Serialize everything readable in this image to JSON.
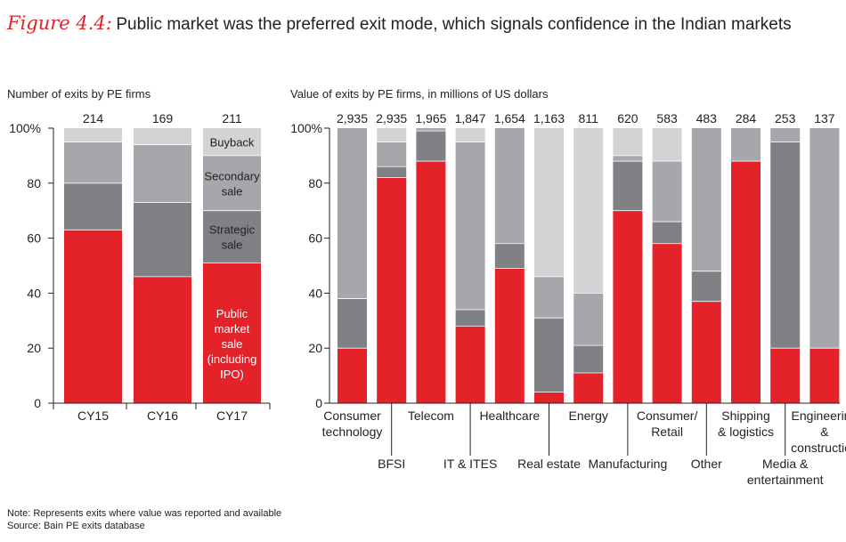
{
  "figure": {
    "label": "Figure 4.4:",
    "title": "Public market was the preferred exit mode, which signals confidence in the Indian markets"
  },
  "notes": {
    "note": "Note: Represents exits where value was reported and available",
    "source": "Source: Bain PE exits database"
  },
  "colors": {
    "public_market": "#e3222a",
    "strategic": "#808185",
    "secondary": "#a6a7aa",
    "buyback": "#d2d3d5",
    "other": "#a6a7aa",
    "axis": "#222222"
  },
  "chart_data": [
    {
      "type": "bar",
      "stacked": true,
      "normalized": true,
      "title": "Number of exits by PE firms",
      "categories": [
        "CY15",
        "CY16",
        "CY17"
      ],
      "totals": [
        "214",
        "169",
        "211"
      ],
      "y_ticks": [
        "0",
        "20",
        "40",
        "60",
        "80",
        "100%"
      ],
      "ylim": [
        0,
        100
      ],
      "series": [
        {
          "name": "Public market sale (including IPO)",
          "values": [
            63,
            46,
            51
          ]
        },
        {
          "name": "Strategic sale",
          "values": [
            17,
            27,
            19
          ]
        },
        {
          "name": "Secondary sale",
          "values": [
            15,
            21,
            20
          ]
        },
        {
          "name": "Buyback",
          "values": [
            5,
            6,
            10
          ]
        }
      ],
      "legend_labels": [
        [
          "Buyback"
        ],
        [
          "Secondary",
          "sale"
        ],
        [
          "Strategic",
          "sale"
        ],
        [
          "Public",
          "market",
          "sale",
          "(including",
          "IPO)"
        ]
      ]
    },
    {
      "type": "bar",
      "stacked": true,
      "normalized": true,
      "title": "Value of exits by PE firms, in millions of US dollars",
      "categories": [
        "Consumer technology",
        "BFSI",
        "Telecom",
        "IT & ITES",
        "Healthcare",
        "Real estate",
        "Energy",
        "Manufacturing",
        "Consumer/ Retail",
        "Other",
        "Shipping & logistics",
        "Media & entertainment",
        "Engineering & construction"
      ],
      "category_labels": [
        [
          "Consumer",
          "technology"
        ],
        [
          "BFSI"
        ],
        [
          "Telecom"
        ],
        [
          "IT & ITES"
        ],
        [
          "Healthcare"
        ],
        [
          "Real estate"
        ],
        [
          "Energy"
        ],
        [
          "Manufacturing"
        ],
        [
          "Consumer/",
          "Retail"
        ],
        [
          "Other"
        ],
        [
          "Shipping",
          "& logistics"
        ],
        [
          "Media &",
          "entertainment"
        ],
        [
          "Engineering",
          "&",
          "construction"
        ]
      ],
      "totals": [
        "2,935",
        "2,935",
        "1,965",
        "1,847",
        "1,654",
        "1,163",
        "811",
        "620",
        "583",
        "483",
        "284",
        "253",
        "137"
      ],
      "y_ticks": [
        "0",
        "20",
        "40",
        "60",
        "80",
        "100%"
      ],
      "ylim": [
        0,
        100
      ],
      "series": [
        {
          "name": "Public market sale (including IPO)",
          "values": [
            20,
            82,
            88,
            28,
            49,
            4,
            11,
            70,
            58,
            37,
            88,
            20,
            20
          ]
        },
        {
          "name": "Strategic sale",
          "values": [
            18,
            4,
            11,
            6,
            9,
            27,
            10,
            18,
            8,
            11,
            0,
            75,
            0
          ]
        },
        {
          "name": "Secondary sale",
          "values": [
            62,
            9,
            1,
            61,
            42,
            15,
            19,
            2,
            22,
            52,
            12,
            5,
            80
          ]
        },
        {
          "name": "Buyback",
          "values": [
            0,
            5,
            0,
            5,
            0,
            54,
            60,
            10,
            12,
            0,
            0,
            0,
            0
          ]
        }
      ]
    }
  ]
}
